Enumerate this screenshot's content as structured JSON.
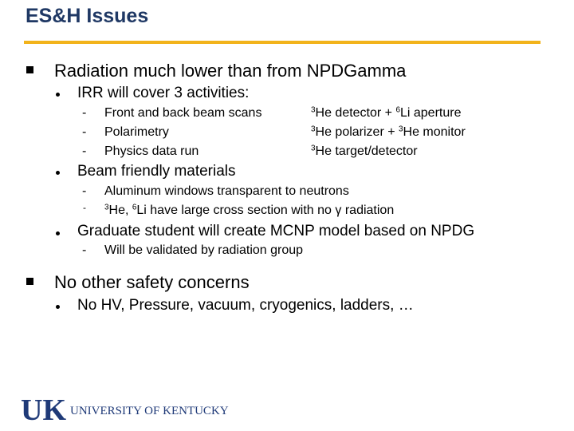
{
  "slide": {
    "title": "ES&H Issues",
    "b1": "Radiation much lower than from NPDGamma",
    "b1_1": "IRR will cover 3 activities:",
    "b1_1_dash": "-",
    "b1_1_items": [
      "Front and back beam scans",
      "Polarimetry",
      "Physics data run"
    ],
    "b1_1_right": [
      {
        "sup1": "3",
        "t1": "He detector + ",
        "sup2": "6",
        "t2": "Li aperture"
      },
      {
        "sup1": "3",
        "t1": "He polarizer + ",
        "sup2": "3",
        "t2": "He monitor"
      },
      {
        "sup1": "3",
        "t1": "He target/detector",
        "sup2": "",
        "t2": ""
      }
    ],
    "b1_2": "Beam friendly materials",
    "b1_2_item1": "Aluminum windows transparent to neutrons",
    "b1_2_item2": {
      "sup1": "3",
      "t1": "He, ",
      "sup2": "6",
      "t2": "Li  have large cross section with no γ radiation"
    },
    "b1_3": "Graduate student will create MCNP model based on NPDG",
    "b1_3_item1": "Will be validated by radiation group",
    "b2": "No other safety concerns",
    "b2_1": "No HV, Pressure, vacuum, cryogenics, ladders, …"
  },
  "footer": {
    "logo_mark": "UK",
    "logo_text": "UNIVERSITY OF KENTUCKY",
    "colors": {
      "logo_blue": "#1f3a78",
      "accent_gold": "#f2b31b",
      "title_blue": "#1f3864"
    }
  }
}
